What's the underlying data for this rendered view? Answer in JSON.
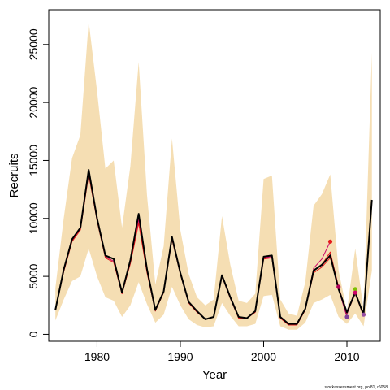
{
  "chart_data": {
    "type": "line",
    "title": "",
    "xlabel": "Year",
    "ylabel": "Recruits",
    "xlim": [
      1974.2,
      2014.0
    ],
    "ylim": [
      -600,
      28000
    ],
    "x_ticks": [
      1980,
      1990,
      2000,
      2010
    ],
    "y_ticks": [
      0,
      5000,
      10000,
      15000,
      20000,
      25000
    ],
    "grid": false,
    "legend": "none",
    "credit": "stockassessment.org, pol81, r6058",
    "colors": {
      "band": "#f5deb3",
      "main": "#000000",
      "prev": "#e41a1c",
      "peel": "#cc0066",
      "peel_last": [
        "#e41a1c",
        "#b3005a",
        "#7f3f98",
        "#7fbf00",
        "#cc0066",
        "#984ea3"
      ]
    },
    "years": [
      1975,
      1976,
      1977,
      1978,
      1979,
      1980,
      1981,
      1982,
      1983,
      1984,
      1985,
      1986,
      1987,
      1988,
      1989,
      1990,
      1991,
      1992,
      1993,
      1994,
      1995,
      1996,
      1997,
      1998,
      1999,
      2000,
      2001,
      2002,
      2003,
      2004,
      2005,
      2006,
      2007,
      2008,
      2009,
      2010,
      2011,
      2012,
      2013
    ],
    "upper": [
      4000,
      10000,
      15200,
      17200,
      27000,
      21000,
      14300,
      15000,
      9200,
      14500,
      23500,
      12000,
      4300,
      7600,
      16900,
      9000,
      5200,
      3200,
      2500,
      3000,
      10200,
      6000,
      2900,
      2700,
      3500,
      13400,
      13700,
      3000,
      1800,
      1600,
      4500,
      11100,
      12100,
      13800,
      5500,
      2000,
      7400,
      2100,
      24300
    ],
    "lower": [
      1200,
      3000,
      4600,
      5000,
      7400,
      5000,
      3200,
      2900,
      1500,
      2500,
      4500,
      2600,
      1000,
      1700,
      4100,
      2500,
      1300,
      800,
      600,
      700,
      2700,
      1600,
      700,
      700,
      900,
      3300,
      3400,
      700,
      400,
      400,
      1000,
      2700,
      3000,
      3400,
      1500,
      900,
      1800,
      700,
      5500
    ],
    "series": [
      {
        "name": "",
        "x": [
          1975,
          1976,
          1977,
          1978,
          1979,
          1980,
          1981,
          1982,
          1983,
          1984,
          1985,
          1986,
          1987,
          1988,
          1989,
          1990,
          1991,
          1992,
          1993,
          1994,
          1995,
          1996,
          1997,
          1998,
          1999,
          2000,
          2001,
          2002,
          2003,
          2004,
          2005,
          2006,
          2007,
          2008,
          2009,
          2010,
          2011,
          2012,
          2013
        ],
        "y": [
          2100,
          5600,
          8200,
          9200,
          14200,
          10000,
          6800,
          6500,
          3600,
          6400,
          10400,
          5600,
          2100,
          3700,
          8400,
          5300,
          2800,
          2000,
          1300,
          1500,
          5100,
          3200,
          1500,
          1400,
          2000,
          6700,
          6800,
          1500,
          900,
          900,
          2200,
          5500,
          6000,
          6800,
          3900,
          1900,
          3600,
          1700,
          11600
        ]
      },
      {
        "name": "",
        "x": [
          1975,
          1976,
          1977,
          1978,
          1979,
          1980,
          1981,
          1982,
          1983,
          1984,
          1985,
          1986,
          1987,
          1988,
          1989,
          1990,
          1991,
          1992,
          1993,
          1994,
          1995,
          1996,
          1997,
          1998,
          1999,
          2000,
          2001,
          2002,
          2003,
          2004,
          2005,
          2006,
          2007,
          2008,
          2009,
          2010,
          2011,
          2012
        ],
        "y": [
          2100,
          5400,
          8000,
          9000,
          13800,
          9800,
          6600,
          6200,
          3500,
          6100,
          9600,
          5300,
          2000,
          3600,
          8200,
          5200,
          2700,
          1900,
          1300,
          1500,
          5000,
          3100,
          1400,
          1400,
          1900,
          6500,
          6600,
          1400,
          800,
          800,
          2100,
          5300,
          5800,
          6600,
          4100,
          1800,
          3500,
          1600
        ]
      },
      {
        "name": "",
        "x": [
          1975,
          1976,
          1977,
          1978,
          1979,
          1980,
          1981,
          1982,
          1983,
          1984,
          1985,
          1986,
          1987,
          1988,
          1989,
          1990,
          1991,
          1992,
          1993,
          1994,
          1995,
          1996,
          1997,
          1998,
          1999,
          2000,
          2001,
          2002,
          2003,
          2004,
          2005,
          2006,
          2007,
          2008
        ],
        "y": [
          2100,
          5500,
          8100,
          9100,
          14000,
          9900,
          6700,
          6300,
          3500,
          6200,
          9900,
          5400,
          2050,
          3650,
          8300,
          5250,
          2750,
          1950,
          1300,
          1500,
          5050,
          3150,
          1450,
          1400,
          1950,
          6600,
          6700,
          1450,
          850,
          850,
          2150,
          5700,
          6500,
          8000
        ]
      },
      {
        "name": "",
        "x": [
          2007,
          2008,
          2009
        ],
        "y": [
          6000,
          7100,
          4100
        ]
      },
      {
        "name": "",
        "x": [
          2007,
          2008,
          2009,
          2010
        ],
        "y": [
          5900,
          6900,
          3900,
          1500
        ]
      },
      {
        "name": "",
        "x": [
          2008,
          2009,
          2010,
          2011
        ],
        "y": [
          6800,
          3900,
          1700,
          3900
        ]
      },
      {
        "name": "",
        "x": [
          2009,
          2010,
          2011,
          2012
        ],
        "y": [
          3900,
          1800,
          3700,
          1700
        ]
      }
    ],
    "endpoints": [
      {
        "x": 2008,
        "y": 8000
      },
      {
        "x": 2009,
        "y": 4100
      },
      {
        "x": 2010,
        "y": 1500
      },
      {
        "x": 2011,
        "y": 3900
      },
      {
        "x": 2011,
        "y": 3600
      },
      {
        "x": 2012,
        "y": 1700
      }
    ]
  }
}
